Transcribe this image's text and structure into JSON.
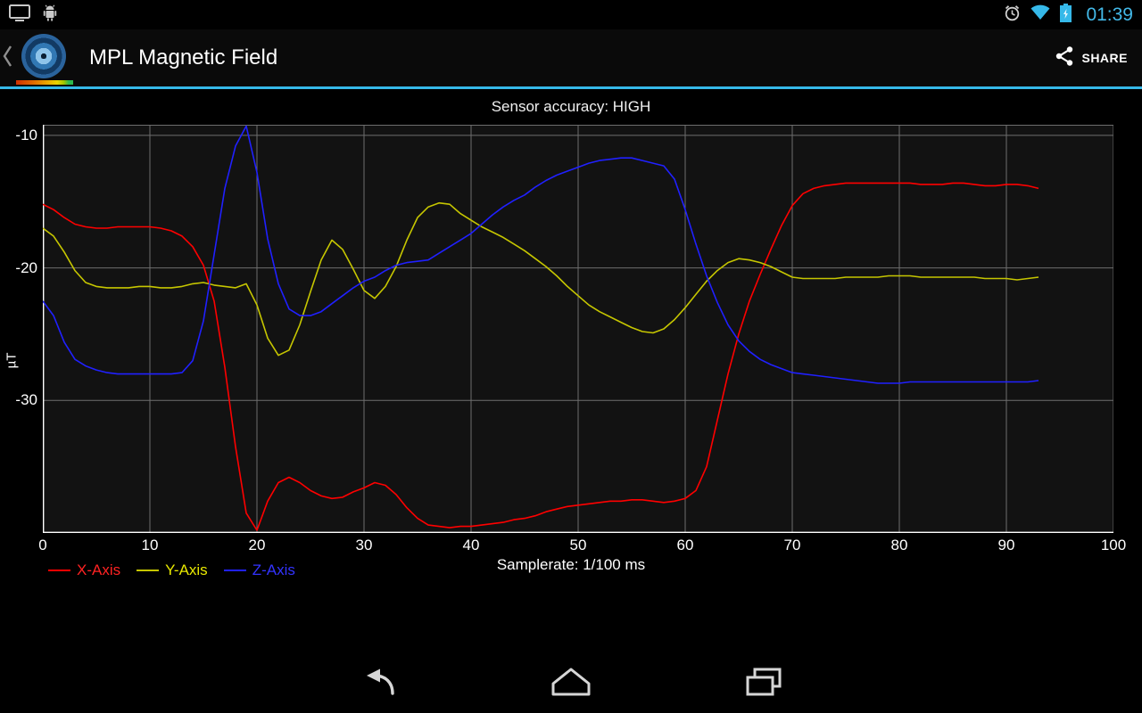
{
  "status_bar": {
    "time": "01:39",
    "left_icons": [
      "cast-screen-icon",
      "adb-debug-icon"
    ],
    "right_icons": [
      "alarm-icon",
      "wifi-icon",
      "battery-charging-icon"
    ]
  },
  "action_bar": {
    "title": "MPL Magnetic Field",
    "share_label": "SHARE"
  },
  "chart": {
    "status_text": "Sensor accuracy: HIGH",
    "y_unit": "µT",
    "x_label": "Samplerate: 1/100 ms"
  },
  "colors": {
    "accent": "#36b9e9",
    "grid": "#6e6e6e",
    "axis": "#ffffff",
    "plot_background": "#121212"
  },
  "navigation_bar": {
    "icons": [
      "back-icon",
      "home-icon",
      "recents-icon"
    ]
  },
  "chart_data": {
    "type": "line",
    "title": "Sensor accuracy: HIGH",
    "xlabel": "Samplerate: 1/100 ms",
    "ylabel": "µT",
    "x_range": [
      0,
      100
    ],
    "y_range": [
      -40,
      -9.2
    ],
    "x_ticks": [
      0,
      10,
      20,
      30,
      40,
      50,
      60,
      70,
      80,
      90,
      100
    ],
    "y_ticks": [
      -10,
      -20,
      -30
    ],
    "x_start": 0,
    "x_step": 1,
    "grid": true,
    "legend_position": "bottom-left",
    "series": [
      {
        "name": "X-Axis",
        "color": "#ff0000",
        "label_color": "#ff2222",
        "values": [
          -15.2,
          -15.6,
          -16.2,
          -16.7,
          -16.9,
          -17,
          -17,
          -16.9,
          -16.9,
          -16.9,
          -16.9,
          -17,
          -17.2,
          -17.6,
          -18.4,
          -19.8,
          -22.5,
          -27.5,
          -33.5,
          -38.5,
          -39.8,
          -37.6,
          -36.2,
          -35.8,
          -36.2,
          -36.8,
          -37.2,
          -37.4,
          -37.3,
          -36.9,
          -36.6,
          -36.2,
          -36.4,
          -37.1,
          -38.1,
          -38.9,
          -39.4,
          -39.5,
          -39.6,
          -39.5,
          -39.5,
          -39.4,
          -39.3,
          -39.2,
          -39,
          -38.9,
          -38.7,
          -38.4,
          -38.2,
          -38,
          -37.9,
          -37.8,
          -37.7,
          -37.6,
          -37.6,
          -37.5,
          -37.5,
          -37.6,
          -37.7,
          -37.6,
          -37.4,
          -36.8,
          -35,
          -31.5,
          -28,
          -25,
          -22.5,
          -20.5,
          -18.6,
          -16.8,
          -15.3,
          -14.4,
          -14,
          -13.8,
          -13.7,
          -13.6,
          -13.6,
          -13.6,
          -13.6,
          -13.6,
          -13.6,
          -13.6,
          -13.7,
          -13.7,
          -13.7,
          -13.6,
          -13.6,
          -13.7,
          -13.8,
          -13.8,
          -13.7,
          -13.7,
          -13.8,
          -14
        ]
      },
      {
        "name": "Y-Axis",
        "color": "#c6c600",
        "label_color": "#e8e800",
        "values": [
          -17,
          -17.6,
          -18.8,
          -20.2,
          -21.1,
          -21.4,
          -21.5,
          -21.5,
          -21.5,
          -21.4,
          -21.4,
          -21.5,
          -21.5,
          -21.4,
          -21.2,
          -21.1,
          -21.3,
          -21.4,
          -21.5,
          -21.2,
          -22.8,
          -25.3,
          -26.6,
          -26.2,
          -24.3,
          -21.8,
          -19.4,
          -17.9,
          -18.6,
          -20.1,
          -21.7,
          -22.3,
          -21.4,
          -19.9,
          -17.9,
          -16.2,
          -15.4,
          -15.1,
          -15.2,
          -15.9,
          -16.4,
          -16.9,
          -17.3,
          -17.7,
          -18.2,
          -18.7,
          -19.3,
          -19.9,
          -20.6,
          -21.4,
          -22.1,
          -22.8,
          -23.3,
          -23.7,
          -24.1,
          -24.5,
          -24.8,
          -24.9,
          -24.6,
          -23.9,
          -23,
          -22,
          -21,
          -20.2,
          -19.6,
          -19.3,
          -19.4,
          -19.6,
          -19.9,
          -20.3,
          -20.7,
          -20.8,
          -20.8,
          -20.8,
          -20.8,
          -20.7,
          -20.7,
          -20.7,
          -20.7,
          -20.6,
          -20.6,
          -20.6,
          -20.7,
          -20.7,
          -20.7,
          -20.7,
          -20.7,
          -20.7,
          -20.8,
          -20.8,
          -20.8,
          -20.9,
          -20.8,
          -20.7
        ]
      },
      {
        "name": "Z-Axis",
        "color": "#2020ff",
        "label_color": "#3333ff",
        "values": [
          -22.5,
          -23.6,
          -25.6,
          -26.9,
          -27.4,
          -27.7,
          -27.9,
          -28,
          -28,
          -28,
          -28,
          -28,
          -28,
          -27.9,
          -27,
          -24,
          -19,
          -14,
          -10.8,
          -9.3,
          -12.8,
          -17.8,
          -21.2,
          -23.1,
          -23.6,
          -23.6,
          -23.3,
          -22.7,
          -22.1,
          -21.5,
          -21,
          -20.7,
          -20.2,
          -19.8,
          -19.6,
          -19.5,
          -19.4,
          -18.9,
          -18.4,
          -17.9,
          -17.4,
          -16.7,
          -16,
          -15.4,
          -14.9,
          -14.5,
          -13.9,
          -13.4,
          -13,
          -12.7,
          -12.4,
          -12.1,
          -11.9,
          -11.8,
          -11.7,
          -11.7,
          -11.9,
          -12.1,
          -12.3,
          -13.3,
          -15.6,
          -18.2,
          -20.6,
          -22.6,
          -24.3,
          -25.5,
          -26.3,
          -26.9,
          -27.3,
          -27.6,
          -27.9,
          -28,
          -28.1,
          -28.2,
          -28.3,
          -28.4,
          -28.5,
          -28.6,
          -28.7,
          -28.7,
          -28.7,
          -28.6,
          -28.6,
          -28.6,
          -28.6,
          -28.6,
          -28.6,
          -28.6,
          -28.6,
          -28.6,
          -28.6,
          -28.6,
          -28.6,
          -28.5
        ]
      }
    ]
  }
}
